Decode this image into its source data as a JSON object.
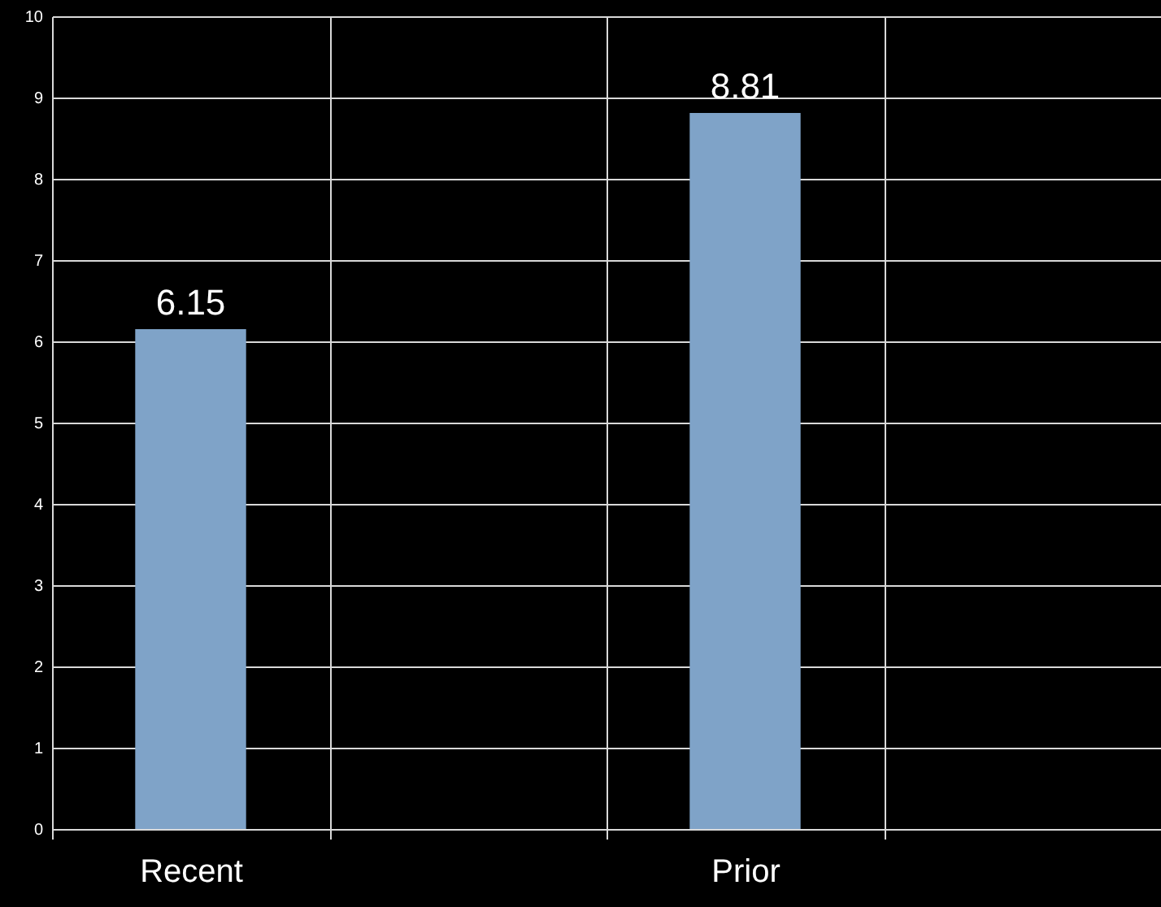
{
  "chart_data": {
    "type": "bar",
    "categories": [
      "Recent",
      null,
      "Prior",
      null
    ],
    "values": [
      6.15,
      null,
      8.81,
      null
    ],
    "color": "#7fa3c8",
    "ylim": [
      0,
      10
    ],
    "yticks": [
      0,
      1,
      2,
      3,
      4,
      5,
      6,
      7,
      8,
      9,
      10
    ],
    "grid": true,
    "data_labels": true
  }
}
